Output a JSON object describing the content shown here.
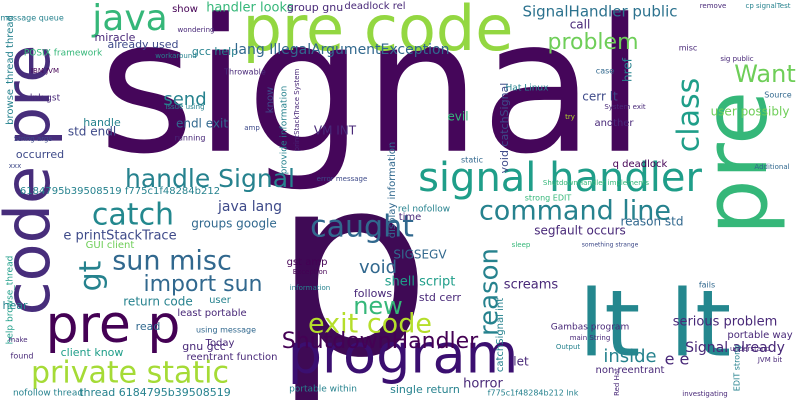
{
  "words": [
    "signal",
    "p",
    "pre code",
    "pre",
    "lt lt",
    "code pre",
    "pre p",
    "program",
    "signal handler",
    "handle Signal",
    "catch",
    "caught",
    "command line",
    "java",
    "Want",
    "class",
    "reason",
    "exit code",
    "private static",
    "ShutdownHandler",
    "sun misc",
    "import sun",
    "gt",
    "new",
    "problem",
    "send",
    "handler looks",
    "SignalHandler public",
    "void",
    "inside",
    "Signal already",
    "serious problem",
    "user possibly",
    "java lang",
    "group gnu",
    "deadlock rel",
    "miracle",
    "message queue",
    "POSIX framework",
    "already used",
    "gcc help",
    "lang IllegalArgumentException",
    "show",
    "std endl",
    "handle",
    "lnk gst",
    "IBM JVM",
    "String args",
    "occurred",
    "endl exit",
    "Throwable",
    "know",
    "VM INT",
    "rel nofollow",
    "display information",
    "void catchSignal",
    "cerr lt",
    "evil",
    "call",
    "Hat Linux",
    "another",
    "try",
    "q deadlock",
    "misc",
    "href",
    "case",
    "sig public",
    "Source",
    "Additional",
    "cp signalTest",
    "remove",
    "strong EDIT",
    "ShutdownHandler implements",
    "6184795b39508519 f775c1f48284b212",
    "e printStackTrace",
    "GUI client",
    "groups google",
    "gnu gcc",
    "segfault occurs",
    "reason std",
    "gst amp",
    "Exception",
    "SIGSEGV",
    "shell script",
    "follows",
    "std cerr",
    "screams",
    "fails",
    "Gambas program",
    "horror",
    "e e",
    "let",
    "single return",
    "non reentrant",
    "portable way",
    "understand",
    "portable within",
    "reentrant function",
    "Today",
    "least portable",
    "using message",
    "client know",
    "found",
    "read",
    "hear",
    "return code",
    "user",
    "thread 6184795b39508519",
    "nofollow thread",
    "help browse_thread",
    "browse_thread thread",
    "issue using",
    "running",
    "wondering",
    "workaround",
    "time",
    "error message",
    "amp",
    "static",
    "Output",
    "investigating",
    "EDIT strong",
    "Red Hat",
    "information",
    "sleep",
    "System exit",
    "catchSignal int",
    "f775c1f48284b212 lnk",
    "provide information",
    "printStackTrace System",
    "make",
    "main String",
    "xxx",
    "something strange",
    "JVM bit"
  ]
}
